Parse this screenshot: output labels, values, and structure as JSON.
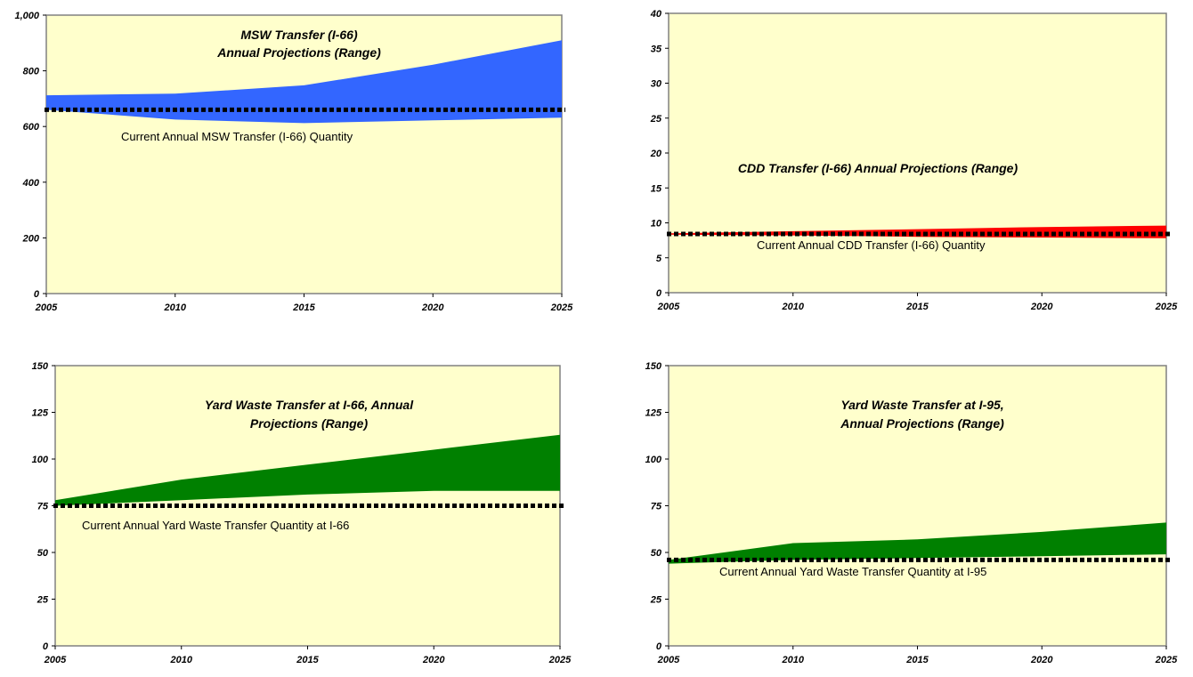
{
  "chart_data": [
    {
      "type": "area",
      "title": [
        "MSW Transfer (I-66)",
        "Annual Projections (Range)"
      ],
      "x": [
        2005,
        2010,
        2015,
        2020,
        2025
      ],
      "x_ticks": [
        "2005",
        "2010",
        "2015",
        "2020",
        "2025"
      ],
      "ylim": [
        0,
        1000
      ],
      "y_ticks": [
        "0",
        "200",
        "400",
        "600",
        "800",
        "1,000"
      ],
      "series": [
        {
          "low": [
            660,
            625,
            612,
            622,
            632
          ],
          "high": [
            712,
            718,
            748,
            822,
            910
          ]
        }
      ],
      "reference_line": {
        "value": 660,
        "label": "Current Annual MSW Transfer (I-66)  Quantity"
      },
      "colors": {
        "fill": "#3366ff",
        "plot_bg": "#ffffcc",
        "line": "#000000"
      },
      "grid": false
    },
    {
      "type": "area",
      "title": [
        "CDD Transfer (I-66) Annual Projections (Range)"
      ],
      "x": [
        2005,
        2010,
        2015,
        2020,
        2025
      ],
      "x_ticks": [
        "2005",
        "2010",
        "2015",
        "2020",
        "2025"
      ],
      "ylim": [
        0,
        40
      ],
      "y_ticks": [
        "0",
        "5",
        "10",
        "15",
        "20",
        "25",
        "30",
        "35",
        "40"
      ],
      "series": [
        {
          "low": [
            8.3,
            8.2,
            8.0,
            7.9,
            7.8
          ],
          "high": [
            8.5,
            8.8,
            9.1,
            9.4,
            9.6
          ]
        }
      ],
      "reference_line": {
        "value": 8.4,
        "label": "Current  Annual  CDD Transfer (I-66) Quantity"
      },
      "colors": {
        "fill": "#ff0000",
        "plot_bg": "#ffffcc",
        "line": "#000000"
      },
      "grid": false
    },
    {
      "type": "area",
      "title": [
        "Yard Waste Transfer at I-66, Annual",
        "Projections (Range)"
      ],
      "x": [
        2005,
        2010,
        2015,
        2020,
        2025
      ],
      "x_ticks": [
        "2005",
        "2010",
        "2015",
        "2020",
        "2025"
      ],
      "ylim": [
        0,
        150
      ],
      "y_ticks": [
        "0",
        "25",
        "50",
        "75",
        "100",
        "125",
        "150"
      ],
      "series": [
        {
          "low": [
            75,
            78,
            81,
            83,
            83
          ],
          "high": [
            78,
            89,
            97,
            105,
            113
          ]
        }
      ],
      "reference_line": {
        "value": 75,
        "label": "Current Annual Yard Waste Transfer Quantity at I-66"
      },
      "colors": {
        "fill": "#008000",
        "plot_bg": "#ffffcc",
        "line": "#000000"
      },
      "grid": false
    },
    {
      "type": "area",
      "title": [
        "Yard Waste Transfer at I-95,",
        "Annual Projections (Range)"
      ],
      "x": [
        2005,
        2010,
        2015,
        2020,
        2025
      ],
      "x_ticks": [
        "2005",
        "2010",
        "2015",
        "2020",
        "2025"
      ],
      "ylim": [
        0,
        150
      ],
      "y_ticks": [
        "0",
        "25",
        "50",
        "75",
        "100",
        "125",
        "150"
      ],
      "series": [
        {
          "low": [
            44,
            46,
            47,
            48,
            49
          ],
          "high": [
            46,
            55,
            57,
            61,
            66
          ]
        }
      ],
      "reference_line": {
        "value": 46,
        "label": "Current Annual Yard Waste Transfer Quantity at I-95"
      },
      "colors": {
        "fill": "#008000",
        "plot_bg": "#ffffcc",
        "line": "#000000"
      },
      "grid": false
    }
  ]
}
